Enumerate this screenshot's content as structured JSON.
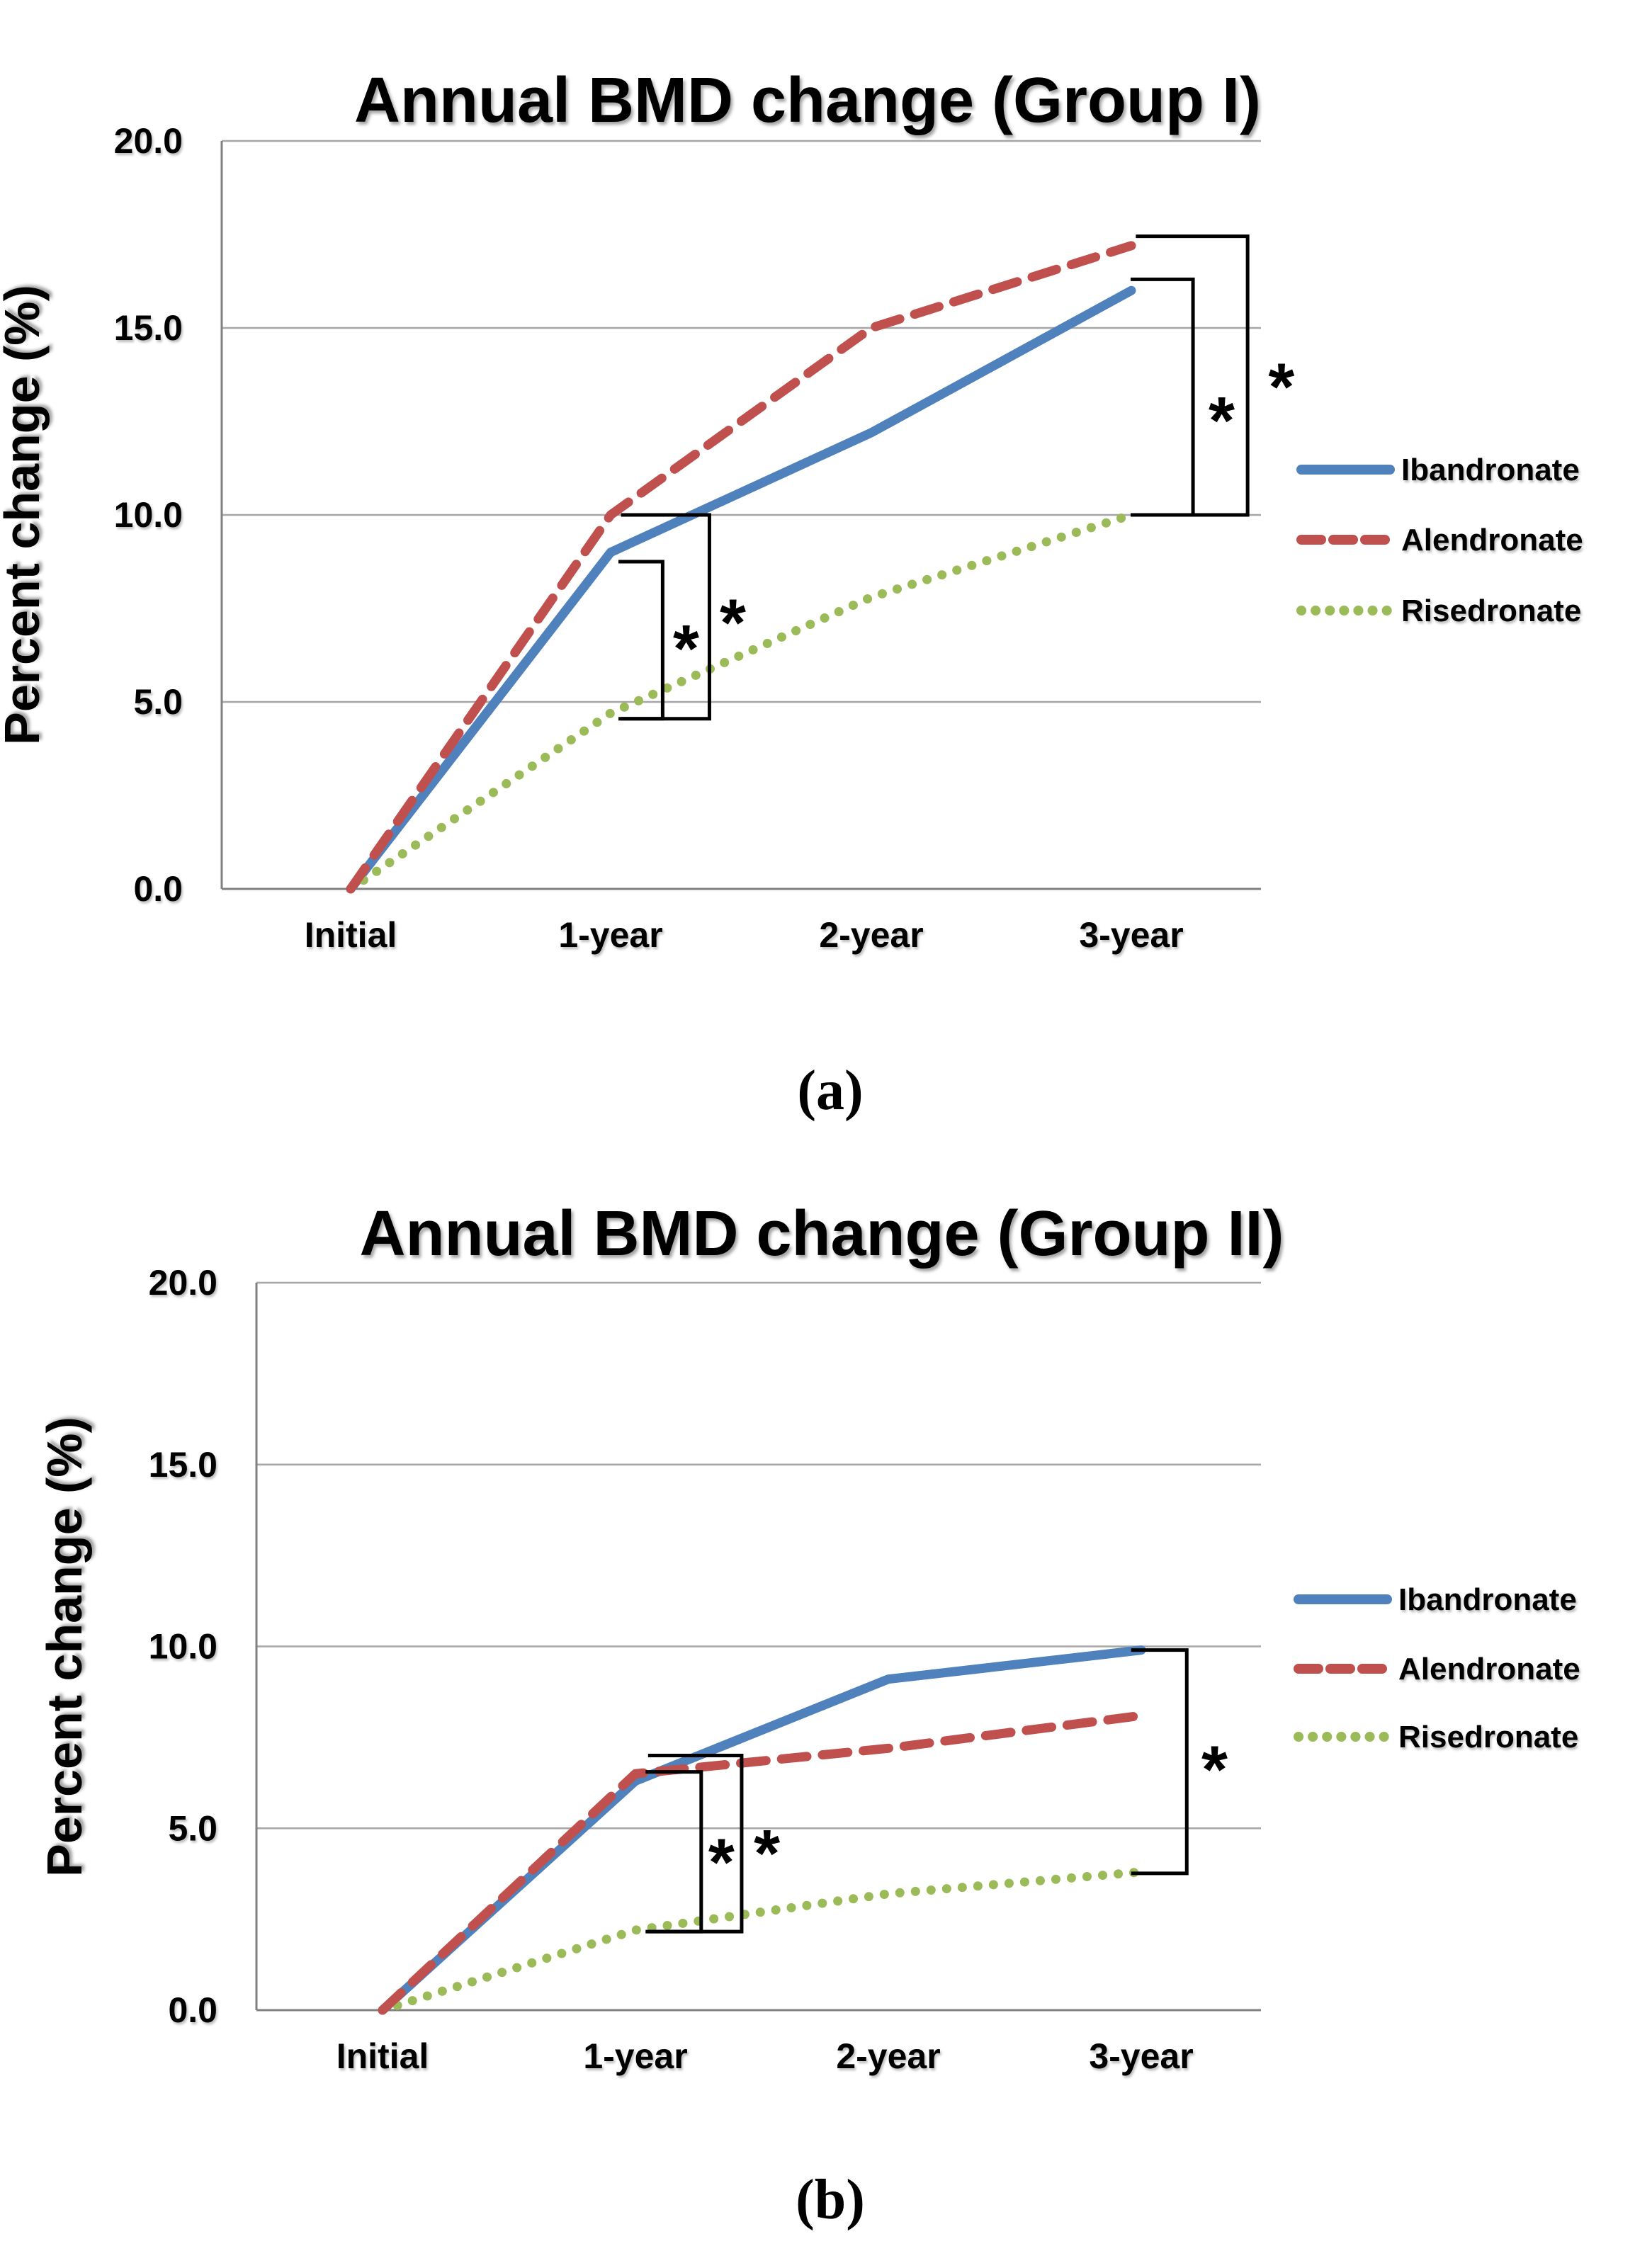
{
  "figure": {
    "background": "#ffffff"
  },
  "colors": {
    "ibandronate": "#4F81BD",
    "alendronate": "#C0504D",
    "risedronate": "#9BBB59",
    "gridline": "#A6A6A6",
    "axis": "#808080",
    "annotation": "#000000",
    "text": "#000000"
  },
  "chart_data": [
    {
      "id": "a",
      "type": "line",
      "title": "Annual BMD change (Group I)",
      "ylabel": "Percent change (%)",
      "xlabel": "",
      "caption": "(a)",
      "categories": [
        "Initial",
        "1-year",
        "2-year",
        "3-year"
      ],
      "y_tick_labels": [
        "20.0",
        "15.0",
        "10.0",
        "5.0",
        "0.0"
      ],
      "ylim": [
        0,
        20
      ],
      "grid": true,
      "legend_position": "right",
      "series": [
        {
          "name": "Ibandronate",
          "line_style": "solid",
          "color_key": "ibandronate",
          "values": [
            0,
            9.0,
            12.2,
            16.0
          ]
        },
        {
          "name": "Alendronate",
          "line_style": "dashed",
          "color_key": "alendronate",
          "values": [
            0,
            10.0,
            15.0,
            17.2
          ]
        },
        {
          "name": "Risedronate",
          "line_style": "dotted",
          "color_key": "risedronate",
          "values": [
            0,
            4.7,
            7.8,
            10.0
          ]
        }
      ],
      "significance": {
        "brackets": [
          {
            "x_left": 1.03,
            "x_right": 1.2,
            "top": 8.75,
            "bottom": 4.55
          },
          {
            "x_left": 1.04,
            "x_right": 1.38,
            "top": 10.0,
            "bottom": 4.55
          },
          {
            "x_left": 3.0,
            "x_right": 3.24,
            "top": 16.3,
            "bottom": 10.0
          },
          {
            "x_left": 3.02,
            "x_right": 3.45,
            "top": 17.45,
            "bottom": 10.0
          }
        ],
        "asterisks": [
          {
            "symbol": "*",
            "x": 1.29,
            "y": 6.7
          },
          {
            "symbol": "*",
            "x": 1.47,
            "y": 7.4
          },
          {
            "symbol": "*",
            "x": 3.35,
            "y": 12.8
          },
          {
            "symbol": "*",
            "x": 3.58,
            "y": 13.7
          }
        ]
      }
    },
    {
      "id": "b",
      "type": "line",
      "title": "Annual BMD change (Group II)",
      "ylabel": "Percent change (%)",
      "xlabel": "",
      "caption": "(b)",
      "categories": [
        "Initial",
        "1-year",
        "2-year",
        "3-year"
      ],
      "y_tick_labels": [
        "20.0",
        "15.0",
        "10.0",
        "5.0",
        "0.0"
      ],
      "ylim": [
        0,
        20
      ],
      "grid": true,
      "legend_position": "right",
      "series": [
        {
          "name": "Ibandronate",
          "line_style": "solid",
          "color_key": "ibandronate",
          "values": [
            0,
            6.3,
            9.1,
            9.9
          ]
        },
        {
          "name": "Alendronate",
          "line_style": "dashed",
          "color_key": "alendronate",
          "values": [
            0,
            6.5,
            7.2,
            8.1
          ]
        },
        {
          "name": "Risedronate",
          "line_style": "dotted",
          "color_key": "risedronate",
          "values": [
            0,
            2.2,
            3.2,
            3.8
          ]
        }
      ],
      "significance": {
        "brackets": [
          {
            "x_left": 1.04,
            "x_right": 1.26,
            "top": 6.55,
            "bottom": 2.16
          },
          {
            "x_left": 1.05,
            "x_right": 1.42,
            "top": 7.0,
            "bottom": 2.16
          },
          {
            "x_left": 2.96,
            "x_right": 3.18,
            "top": 9.9,
            "bottom": 3.76
          }
        ],
        "asterisks": [
          {
            "symbol": "*",
            "x": 1.34,
            "y": 4.35
          },
          {
            "symbol": "*",
            "x": 1.52,
            "y": 4.6
          },
          {
            "symbol": "*",
            "x": 3.29,
            "y": 6.9
          }
        ]
      }
    }
  ]
}
